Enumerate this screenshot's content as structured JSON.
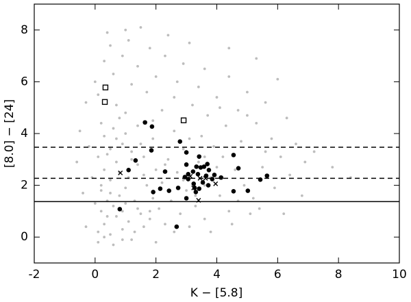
{
  "chart_data": {
    "type": "scatter",
    "xlabel": "K − [5.8]",
    "ylabel": "[8.0] − [24]",
    "xlim": [
      -2,
      10
    ],
    "ylim": [
      -1,
      9
    ],
    "xticks": [
      -2,
      0,
      2,
      4,
      6,
      8,
      10
    ],
    "yticks": [
      0,
      2,
      4,
      6,
      8
    ],
    "series": [
      {
        "color": "#bdbdbd",
        "marker": "dot",
        "x": [
          0.1,
          0.3,
          0.5,
          0.7,
          0.2,
          0.9,
          1.1,
          0.4,
          0.6,
          1.3,
          1.5,
          0.8,
          1.0,
          0.2,
          0.5,
          0.3,
          0.7,
          0.1,
          0.5,
          0.9,
          0.3,
          0.6,
          1.0,
          1.2,
          1.4,
          1.1,
          1.7,
          1.9,
          2.1,
          1.8,
          2.3,
          2.6,
          2.8,
          2.5,
          2.2,
          2.0,
          1.6,
          1.9,
          1.4,
          0.8,
          0.2,
          -0.2,
          -0.1,
          0.0,
          -0.3,
          0.1,
          0.6,
          1.2,
          1.6,
          0.4,
          0.9,
          1.3,
          0.2,
          0.8,
          1.2,
          0.4,
          0.7,
          1.5,
          2.4,
          2.7,
          3.0,
          3.3,
          3.6,
          3.1,
          2.9,
          3.4,
          3.8,
          4.1,
          4.4,
          3.9,
          3.5,
          4.2,
          4.6,
          4.9,
          5.2,
          5.5,
          4.8,
          4.3,
          3.7,
          3.2,
          2.6,
          2.2,
          1.7,
          1.2,
          0.6,
          0.3,
          0.5,
          0.9,
          1.4,
          2.0,
          2.7,
          3.4,
          4.0,
          4.7,
          5.3,
          5.8,
          6.1,
          6.4,
          5.9,
          5.6,
          5.0,
          4.4,
          3.6,
          2.9,
          2.3,
          1.8,
          1.1,
          0.4,
          1.5,
          0.0,
          -0.3,
          -0.5,
          -0.6,
          -0.4,
          6.6,
          6.9,
          7.2,
          6.3,
          5.6,
          7.8,
          8.4,
          6.8,
          4.5,
          5.1,
          3.8,
          2.0,
          1.0,
          0.1,
          0.7,
          1.9,
          2.6,
          3.1,
          3.6,
          4.0,
          2.3,
          1.6,
          1.8,
          0.5,
          1.0,
          0.3,
          0.9,
          1.4,
          2.4,
          2.9,
          3.3,
          3.6,
          4.7,
          5.4,
          6.2,
          4.1,
          5.0,
          6.0,
          5.3,
          4.4,
          3.1,
          2.4,
          1.0
        ],
        "y": [
          0.2,
          0.5,
          0.1,
          0.8,
          1.0,
          0.3,
          0.6,
          1.4,
          1.2,
          0.2,
          0.9,
          1.6,
          1.9,
          1.8,
          2.2,
          2.6,
          2.9,
          3.1,
          3.4,
          3.6,
          3.9,
          4.2,
          4.0,
          3.3,
          2.8,
          2.3,
          2.0,
          1.5,
          1.1,
          0.7,
          0.5,
          0.2,
          0.9,
          1.4,
          2.1,
          2.6,
          3.1,
          3.8,
          4.3,
          4.6,
          4.4,
          3.5,
          2.3,
          1.3,
          0.4,
          -0.2,
          -0.3,
          -0.1,
          0.4,
          0.8,
          1.0,
          1.4,
          2.0,
          2.5,
          3.0,
          3.2,
          3.8,
          3.6,
          3.0,
          2.5,
          1.8,
          1.2,
          0.7,
          0.4,
          3.4,
          2.9,
          2.3,
          1.6,
          1.0,
          3.5,
          3.9,
          3.1,
          2.6,
          2.0,
          1.5,
          2.7,
          3.7,
          4.3,
          4.7,
          5.1,
          5.4,
          4.9,
          5.6,
          5.9,
          6.3,
          6.8,
          7.4,
          7.0,
          6.6,
          6.2,
          6.0,
          5.8,
          5.4,
          4.9,
          4.4,
          3.8,
          3.1,
          2.4,
          1.9,
          3.3,
          5.6,
          6.2,
          6.5,
          6.7,
          7.0,
          7.3,
          7.6,
          7.9,
          8.1,
          6.0,
          5.2,
          4.1,
          2.9,
          1.7,
          3.6,
          2.9,
          3.3,
          4.6,
          5.2,
          2.7,
          2.3,
          1.6,
          0.5,
          0.9,
          0.2,
          -0.2,
          4.8,
          5.5,
          5.1,
          4.5,
          4.1,
          3.8,
          3.1,
          2.7,
          2.8,
          2.4,
          1.0,
          1.7,
          1.3,
          0.0,
          -0.1,
          1.1,
          1.8,
          2.2,
          1.6,
          2.0,
          1.4,
          1.1,
          0.9,
          5.0,
          4.7,
          6.1,
          6.9,
          7.3,
          7.5,
          7.8,
          8.0
        ]
      },
      {
        "color": "#000000",
        "marker": "circle",
        "x": [
          1.64,
          1.87,
          1.85,
          2.79,
          3.0,
          1.33,
          1.1,
          2.3,
          3.0,
          3.33,
          3.47,
          3.58,
          3.69,
          3.74,
          3.22,
          3.06,
          3.38,
          3.65,
          3.92,
          4.55,
          4.71,
          4.14,
          3.85,
          3.06,
          3.24,
          3.54,
          2.73,
          2.43,
          3.27,
          3.42,
          3.72,
          3.31,
          1.91,
          3.0,
          4.55,
          5.02,
          5.43,
          5.65,
          0.81,
          2.68,
          2.14,
          3.42,
          2.95
        ],
        "y": [
          4.43,
          4.27,
          3.35,
          3.69,
          3.27,
          2.96,
          2.59,
          2.53,
          2.8,
          2.72,
          2.69,
          2.72,
          2.82,
          2.59,
          2.53,
          2.43,
          2.43,
          2.37,
          2.4,
          3.17,
          2.66,
          2.3,
          2.24,
          2.24,
          2.06,
          2.11,
          1.9,
          1.79,
          1.9,
          1.87,
          2.0,
          1.74,
          1.74,
          1.5,
          1.77,
          1.79,
          2.22,
          2.37,
          1.08,
          0.4,
          1.87,
          3.11,
          2.32
        ]
      },
      {
        "color": "#000000",
        "marker": "x",
        "x": [
          0.83,
          3.13,
          3.45,
          3.96,
          3.24,
          3.4,
          3.63
        ],
        "y": [
          2.48,
          2.35,
          2.27,
          2.06,
          1.9,
          1.42,
          2.27
        ]
      },
      {
        "color": "#000000",
        "marker": "square",
        "x": [
          0.34,
          0.32,
          2.91
        ],
        "y": [
          5.78,
          5.22,
          4.51
        ]
      }
    ],
    "hlines": [
      {
        "value": 3.47,
        "style": "dashed"
      },
      {
        "value": 2.27,
        "style": "dashed"
      },
      {
        "value": 1.37,
        "style": "solid"
      }
    ]
  }
}
